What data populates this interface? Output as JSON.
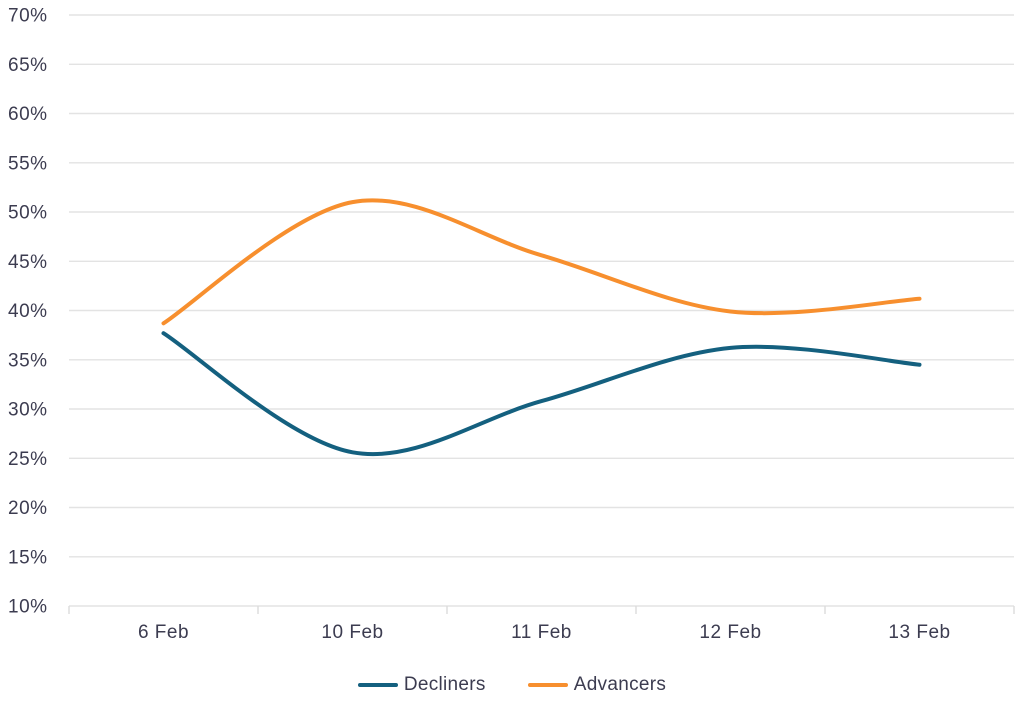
{
  "chart_data": {
    "type": "line",
    "title": "",
    "xlabel": "",
    "ylabel": "",
    "categories": [
      "6 Feb",
      "10 Feb",
      "11 Feb",
      "12 Feb",
      "13 Feb"
    ],
    "series": [
      {
        "name": "Decliners",
        "color": "#14607F",
        "values": [
          37.7,
          25.6,
          30.8,
          36.2,
          34.5
        ]
      },
      {
        "name": "Advancers",
        "color": "#F78F2E",
        "values": [
          38.7,
          51.0,
          45.6,
          39.9,
          41.2
        ]
      }
    ],
    "ylim": [
      10,
      70
    ],
    "ytick_step": 5,
    "yticks": [
      "70%",
      "65%",
      "60%",
      "55%",
      "50%",
      "45%",
      "40%",
      "35%",
      "30%",
      "25%",
      "20%",
      "15%",
      "10%"
    ],
    "grid": "horizontal",
    "smooth": true,
    "legend_position": "bottom"
  },
  "colors": {
    "grid": "#E3E3E3",
    "tick": "#DBDBDB",
    "text": "#3C3C50",
    "background": "#FFFFFF"
  }
}
